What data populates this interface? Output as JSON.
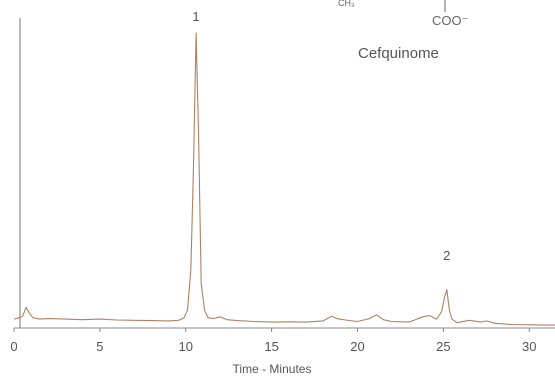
{
  "chart_data": {
    "type": "line",
    "title": "",
    "xlabel": "Time - Minutes",
    "ylabel": "",
    "xlim": [
      0,
      31.5
    ],
    "ylim": [
      0,
      100
    ],
    "x_ticks": [
      0,
      5,
      10,
      15,
      20,
      25,
      30
    ],
    "grid": false,
    "compound_label": "Cefquinome",
    "structure_fragments": [
      "CH₃",
      "COO⁻"
    ],
    "annotations": [
      {
        "text": "1",
        "x": 10.6,
        "y": 100
      },
      {
        "text": "2",
        "x": 25.2,
        "y": 19
      }
    ],
    "series": [
      {
        "color": "#b08060",
        "x": [
          0,
          0.3,
          0.5,
          0.7,
          0.9,
          1.1,
          1.5,
          2,
          3,
          4,
          5,
          6,
          7,
          8,
          9,
          9.6,
          9.9,
          10.1,
          10.3,
          10.45,
          10.6,
          10.75,
          10.9,
          11.1,
          11.3,
          11.6,
          12,
          12.4,
          13,
          14,
          15,
          16,
          17,
          18,
          18.5,
          18.8,
          19.3,
          20,
          20.7,
          21.1,
          21.5,
          22,
          23,
          23.8,
          24.2,
          24.6,
          24.9,
          25.05,
          25.2,
          25.35,
          25.5,
          25.8,
          26.5,
          27.2,
          27.5,
          28,
          29,
          30,
          31,
          31.5
        ],
        "y": [
          3,
          3.5,
          4,
          7,
          5,
          3.5,
          3,
          3.2,
          3,
          2.8,
          3,
          2.7,
          2.6,
          2.5,
          2.4,
          2.6,
          3.5,
          6,
          20,
          55,
          100,
          65,
          15,
          6,
          3.5,
          3.2,
          3.8,
          2.8,
          2.5,
          2.2,
          2,
          2.1,
          2,
          2.4,
          4,
          3.2,
          2.7,
          2.2,
          3.2,
          4.5,
          2.8,
          2.2,
          2,
          3.8,
          4.2,
          3,
          5.5,
          10,
          13,
          6,
          3,
          1.8,
          2.6,
          2,
          2.4,
          1.6,
          1.2,
          1.1,
          1,
          1
        ]
      }
    ]
  }
}
